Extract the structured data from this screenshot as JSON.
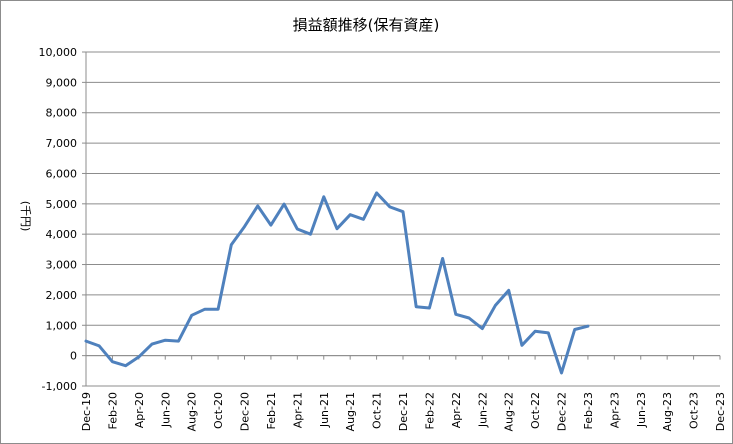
{
  "chart_data": {
    "type": "line",
    "title": "損益額推移(保有資産)",
    "ylabel": "(千円)",
    "xlabel": "",
    "ylim": [
      -1000,
      10000
    ],
    "y_ticks": [
      "-1,000",
      "0",
      "1,000",
      "2,000",
      "3,000",
      "4,000",
      "5,000",
      "6,000",
      "7,000",
      "8,000",
      "9,000",
      "10,000"
    ],
    "y_tick_values": [
      -1000,
      0,
      1000,
      2000,
      3000,
      4000,
      5000,
      6000,
      7000,
      8000,
      9000,
      10000
    ],
    "x_range": [
      "Dec-19",
      "Dec-23"
    ],
    "x_ticks": [
      "Dec-19",
      "Feb-20",
      "Apr-20",
      "Jun-20",
      "Aug-20",
      "Oct-20",
      "Dec-20",
      "Feb-21",
      "Apr-21",
      "Jun-21",
      "Aug-21",
      "Oct-21",
      "Dec-21",
      "Feb-22",
      "Apr-22",
      "Jun-22",
      "Aug-22",
      "Oct-22",
      "Dec-22",
      "Feb-23",
      "Apr-23",
      "Jun-23",
      "Aug-23",
      "Oct-23",
      "Dec-23"
    ],
    "grid": "horizontal",
    "legend": "none",
    "series": [
      {
        "color": "#4f81bd",
        "x": [
          "Dec-19",
          "Jan-20",
          "Feb-20",
          "Mar-20",
          "Apr-20",
          "May-20",
          "Jun-20",
          "Jul-20",
          "Aug-20",
          "Sep-20",
          "Oct-20",
          "Nov-20",
          "Dec-20",
          "Jan-21",
          "Feb-21",
          "Mar-21",
          "Apr-21",
          "May-21",
          "Jun-21",
          "Jul-21",
          "Aug-21",
          "Sep-21",
          "Oct-21",
          "Nov-21",
          "Dec-21",
          "Jan-22",
          "Feb-22",
          "Mar-22",
          "Apr-22",
          "May-22",
          "Jun-22",
          "Jul-22",
          "Aug-22",
          "Sep-22",
          "Oct-22",
          "Nov-22",
          "Dec-22",
          "Jan-23",
          "Feb-23"
        ],
        "values": [
          480,
          320,
          -200,
          -330,
          -40,
          380,
          510,
          480,
          1330,
          1530,
          1530,
          3650,
          4250,
          4930,
          4300,
          4990,
          4170,
          4000,
          5230,
          4180,
          4640,
          4490,
          5360,
          4900,
          4740,
          1610,
          1570,
          3200,
          1360,
          1240,
          890,
          1660,
          2150,
          340,
          800,
          750,
          -570,
          860,
          970
        ]
      }
    ]
  }
}
